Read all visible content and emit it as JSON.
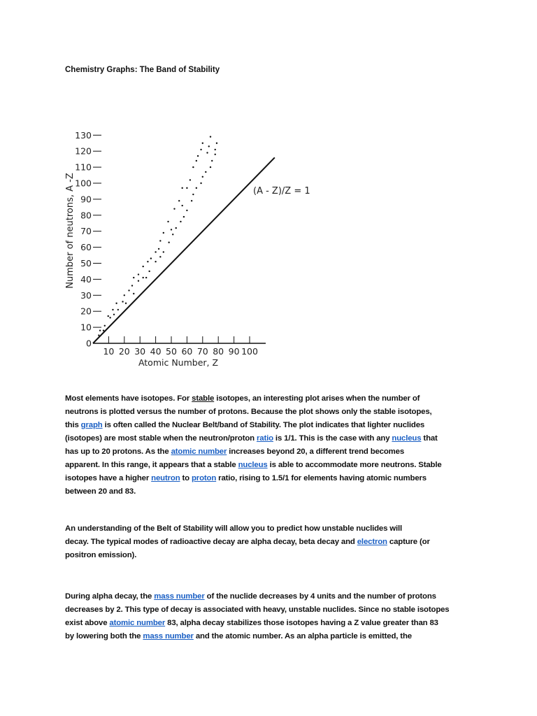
{
  "title": "Chemistry Graphs: The Band of Stability",
  "chart_data": {
    "type": "scatter",
    "xlabel": "Atomic Number, Z",
    "ylabel": "Number of neutrons, A -Z",
    "xticks": [
      10,
      20,
      30,
      40,
      50,
      60,
      70,
      80,
      90,
      100
    ],
    "yticks": [
      0,
      10,
      20,
      30,
      40,
      50,
      60,
      70,
      80,
      90,
      100,
      110,
      120,
      130
    ],
    "xlim": [
      0,
      120
    ],
    "ylim": [
      0,
      130
    ],
    "grid": false,
    "reference_line": {
      "label": "(A - Z)/Z = 1",
      "x": [
        0,
        116
      ],
      "y": [
        0,
        116
      ]
    },
    "points": [
      [
        3.7,
        5
      ],
      [
        4.5,
        8
      ],
      [
        6.7,
        8
      ],
      [
        7.5,
        11
      ],
      [
        9.7,
        17
      ],
      [
        11,
        16
      ],
      [
        12.7,
        21
      ],
      [
        13.4,
        18
      ],
      [
        15,
        25
      ],
      [
        16,
        21
      ],
      [
        19,
        26
      ],
      [
        20,
        30
      ],
      [
        21,
        25
      ],
      [
        23,
        33
      ],
      [
        25,
        36
      ],
      [
        26,
        31
      ],
      [
        26,
        41
      ],
      [
        29,
        43
      ],
      [
        29,
        39
      ],
      [
        32,
        48
      ],
      [
        32,
        41
      ],
      [
        34,
        41
      ],
      [
        35,
        51
      ],
      [
        36,
        45
      ],
      [
        37,
        53
      ],
      [
        40,
        57
      ],
      [
        40,
        51
      ],
      [
        42,
        59
      ],
      [
        43,
        54
      ],
      [
        43,
        64
      ],
      [
        45,
        57
      ],
      [
        45,
        69
      ],
      [
        48,
        76
      ],
      [
        48.5,
        63
      ],
      [
        50,
        71
      ],
      [
        51,
        68
      ],
      [
        52,
        84
      ],
      [
        53,
        72
      ],
      [
        55,
        89
      ],
      [
        56,
        76
      ],
      [
        57,
        86
      ],
      [
        57,
        97
      ],
      [
        58,
        79
      ],
      [
        60,
        97
      ],
      [
        60,
        83
      ],
      [
        62,
        102
      ],
      [
        63,
        89
      ],
      [
        64,
        110
      ],
      [
        64,
        93
      ],
      [
        66,
        114
      ],
      [
        66,
        97
      ],
      [
        67,
        117
      ],
      [
        69,
        100
      ],
      [
        69,
        121
      ],
      [
        70,
        104
      ],
      [
        70,
        125
      ],
      [
        72,
        107
      ],
      [
        73,
        119
      ],
      [
        74,
        123
      ],
      [
        75,
        110
      ],
      [
        75,
        129
      ],
      [
        76,
        114
      ],
      [
        78,
        118
      ],
      [
        78,
        121
      ],
      [
        79,
        125
      ]
    ]
  },
  "colors": {
    "link": "#1a5fc4",
    "text": "#111111"
  },
  "paragraphs": [
    {
      "top": 571,
      "lines": [
        [
          {
            "t": "Most elements have isotopes. For "
          },
          {
            "t": "stable",
            "s": "u"
          },
          {
            "t": " isotopes, an interesting plot arises when the number of"
          }
        ],
        [
          {
            "t": "neutrons is plotted versus the number of protons. Because the plot shows only the stable isotopes,"
          }
        ],
        [
          {
            "t": "this "
          },
          {
            "t": "graph",
            "s": "lk"
          },
          {
            "t": " is often called the Nuclear Belt/band of Stability. The plot indicates that lighter nuclides"
          }
        ],
        [
          {
            "t": "(isotopes) are most stable when the neutron/proton "
          },
          {
            "t": "ratio",
            "s": "lk"
          },
          {
            "t": " is 1/1. This is the case with any "
          },
          {
            "t": "nucleus",
            "s": "lk"
          },
          {
            "t": " that"
          }
        ],
        [
          {
            "t": "has up to 20 protons. As the "
          },
          {
            "t": "atomic number",
            "s": "lk"
          },
          {
            "t": " increases beyond 20, a different trend becomes"
          }
        ],
        [
          {
            "t": "apparent. In this range, it appears that a stable "
          },
          {
            "t": "nucleus",
            "s": "lk"
          },
          {
            "t": " is able to accommodate more neutrons. Stable"
          }
        ],
        [
          {
            "t": "isotopes have a higher "
          },
          {
            "t": "neutron",
            "s": "lk"
          },
          {
            "t": " to "
          },
          {
            "t": "proton",
            "s": "lk"
          },
          {
            "t": " ratio, rising to 1.5/1 for elements having atomic numbers"
          }
        ],
        [
          {
            "t": "between 20 and 83."
          }
        ]
      ]
    },
    {
      "top": 757,
      "lines": [
        [
          {
            "t": "An understanding of the Belt of Stability will allow you to predict how unstable nuclides will"
          }
        ],
        [
          {
            "t": "decay. The typical modes of radioactive decay are alpha decay, beta decay and "
          },
          {
            "t": "electron",
            "s": "lk"
          },
          {
            "t": " capture (or"
          }
        ],
        [
          {
            "t": "positron emission)."
          }
        ]
      ]
    },
    {
      "top": 854,
      "lines": [
        [
          {
            "t": "During alpha decay, the "
          },
          {
            "t": "mass number",
            "s": "lk"
          },
          {
            "t": " of the nuclide decreases by 4 units and the number of protons"
          }
        ],
        [
          {
            "t": "decreases by 2. This type of decay is associated with heavy, unstable nuclides. Since no stable isotopes"
          }
        ],
        [
          {
            "t": "exist above "
          },
          {
            "t": "atomic number",
            "s": "lk"
          },
          {
            "t": " 83, alpha decay stabilizes those isotopes having a Z value greater than 83"
          }
        ],
        [
          {
            "t": "by lowering both the "
          },
          {
            "t": "mass number",
            "s": "lk"
          },
          {
            "t": " and the atomic number. As an alpha particle is emitted, the"
          }
        ]
      ]
    }
  ]
}
